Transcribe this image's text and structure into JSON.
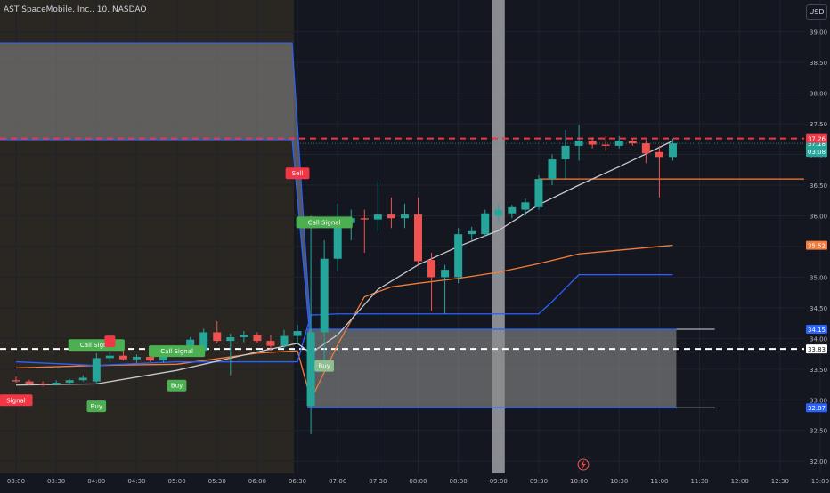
{
  "header": {
    "title": "AST SpaceMobile, Inc., 10, NASDAQ",
    "currency_button": "USD"
  },
  "colors": {
    "background": "#141720",
    "premarket_bg": "#2a2622",
    "up": "#26a69a",
    "down": "#ef5350",
    "orange_line": "#f57c3a",
    "blue_line": "#2962ff",
    "white_line": "#c7c9cf",
    "red_dashed": "#f23645",
    "white_dashed": "#ffffff",
    "band_fill": "#8c8c8c",
    "highlight_bar": "#9ea0a6",
    "buy_label": "#4caf50",
    "sell_label": "#f23645",
    "call_label": "#4caf50",
    "put_label": "#c88d2e"
  },
  "chart_data": {
    "type": "candlestick",
    "title": "AST SpaceMobile, Inc., 10, NASDAQ",
    "x_axis": {
      "labels": [
        "03:00",
        "03:30",
        "04:00",
        "04:30",
        "05:00",
        "05:30",
        "06:00",
        "06:30",
        "07:00",
        "07:30",
        "08:00",
        "08:30",
        "09:00",
        "09:30",
        "10:00",
        "10:30",
        "11:00",
        "11:30",
        "12:00",
        "12:30",
        "13:00",
        "13"
      ],
      "start_time": "03:00",
      "end_time": "13:00",
      "bar_interval_minutes": 10
    },
    "y_axis": {
      "ticks": [
        "32.00",
        "32.50",
        "33.00",
        "33.50",
        "34.00",
        "34.50",
        "35.00",
        "35.50",
        "36.00",
        "36.50",
        "37.00",
        "37.50",
        "38.00",
        "38.50",
        "39.00"
      ],
      "range": [
        31.8,
        39.3
      ],
      "position": "right"
    },
    "candles": [
      {
        "t": "03:00",
        "o": 33.32,
        "h": 33.38,
        "l": 33.28,
        "c": 33.3
      },
      {
        "t": "03:10",
        "o": 33.3,
        "h": 33.33,
        "l": 33.24,
        "c": 33.26
      },
      {
        "t": "03:20",
        "o": 33.26,
        "h": 33.3,
        "l": 33.22,
        "c": 33.25
      },
      {
        "t": "03:30",
        "o": 33.25,
        "h": 33.32,
        "l": 33.23,
        "c": 33.28
      },
      {
        "t": "03:40",
        "o": 33.28,
        "h": 33.34,
        "l": 33.26,
        "c": 33.32
      },
      {
        "t": "03:50",
        "o": 33.32,
        "h": 33.4,
        "l": 33.3,
        "c": 33.36
      },
      {
        "t": "04:00",
        "o": 33.3,
        "h": 33.76,
        "l": 33.26,
        "c": 33.68
      },
      {
        "t": "04:10",
        "o": 33.68,
        "h": 33.78,
        "l": 33.62,
        "c": 33.72
      },
      {
        "t": "04:20",
        "o": 33.72,
        "h": 33.82,
        "l": 33.64,
        "c": 33.66
      },
      {
        "t": "04:30",
        "o": 33.66,
        "h": 33.74,
        "l": 33.6,
        "c": 33.7
      },
      {
        "t": "04:40",
        "o": 33.7,
        "h": 33.76,
        "l": 33.62,
        "c": 33.64
      },
      {
        "t": "04:50",
        "o": 33.64,
        "h": 33.8,
        "l": 33.6,
        "c": 33.76
      },
      {
        "t": "05:00",
        "o": 33.76,
        "h": 33.88,
        "l": 33.7,
        "c": 33.8
      },
      {
        "t": "05:10",
        "o": 33.8,
        "h": 34.02,
        "l": 33.74,
        "c": 33.98
      },
      {
        "t": "05:20",
        "o": 33.8,
        "h": 34.16,
        "l": 33.7,
        "c": 34.1
      },
      {
        "t": "05:30",
        "o": 34.1,
        "h": 34.28,
        "l": 33.92,
        "c": 33.96
      },
      {
        "t": "05:40",
        "o": 33.96,
        "h": 34.08,
        "l": 33.4,
        "c": 34.02
      },
      {
        "t": "05:50",
        "o": 34.02,
        "h": 34.12,
        "l": 33.94,
        "c": 34.06
      },
      {
        "t": "06:00",
        "o": 34.06,
        "h": 34.1,
        "l": 33.92,
        "c": 33.96
      },
      {
        "t": "06:10",
        "o": 33.96,
        "h": 34.06,
        "l": 33.8,
        "c": 33.88
      },
      {
        "t": "06:20",
        "o": 33.88,
        "h": 34.14,
        "l": 33.84,
        "c": 34.04
      },
      {
        "t": "06:30",
        "o": 34.04,
        "h": 34.22,
        "l": 33.9,
        "c": 34.12
      },
      {
        "t": "06:40",
        "o": 32.9,
        "h": 36.0,
        "l": 32.44,
        "c": 34.1
      },
      {
        "t": "06:50",
        "o": 34.1,
        "h": 35.6,
        "l": 33.6,
        "c": 35.3
      },
      {
        "t": "07:00",
        "o": 35.3,
        "h": 36.2,
        "l": 35.1,
        "c": 35.88
      },
      {
        "t": "07:10",
        "o": 35.88,
        "h": 36.1,
        "l": 35.6,
        "c": 35.96
      },
      {
        "t": "07:20",
        "o": 35.96,
        "h": 36.1,
        "l": 35.4,
        "c": 35.94
      },
      {
        "t": "07:30",
        "o": 35.94,
        "h": 36.55,
        "l": 35.75,
        "c": 36.02
      },
      {
        "t": "07:40",
        "o": 36.02,
        "h": 36.3,
        "l": 35.8,
        "c": 35.96
      },
      {
        "t": "07:50",
        "o": 35.96,
        "h": 36.2,
        "l": 35.8,
        "c": 36.02
      },
      {
        "t": "08:00",
        "o": 36.02,
        "h": 36.3,
        "l": 35.2,
        "c": 35.26
      },
      {
        "t": "08:10",
        "o": 35.28,
        "h": 35.4,
        "l": 34.45,
        "c": 35.0
      },
      {
        "t": "08:20",
        "o": 35.0,
        "h": 35.2,
        "l": 34.4,
        "c": 35.12
      },
      {
        "t": "08:30",
        "o": 35.0,
        "h": 35.8,
        "l": 34.9,
        "c": 35.7
      },
      {
        "t": "08:40",
        "o": 35.7,
        "h": 35.82,
        "l": 35.6,
        "c": 35.75
      },
      {
        "t": "08:50",
        "o": 35.7,
        "h": 36.1,
        "l": 35.66,
        "c": 36.04
      },
      {
        "t": "09:00",
        "o": 36.0,
        "h": 36.2,
        "l": 35.9,
        "c": 36.1
      },
      {
        "t": "09:10",
        "o": 36.04,
        "h": 36.18,
        "l": 35.96,
        "c": 36.14
      },
      {
        "t": "09:20",
        "o": 36.1,
        "h": 36.28,
        "l": 36.0,
        "c": 36.22
      },
      {
        "t": "09:30",
        "o": 36.14,
        "h": 36.66,
        "l": 36.1,
        "c": 36.6
      },
      {
        "t": "09:40",
        "o": 36.6,
        "h": 37.0,
        "l": 36.5,
        "c": 36.92
      },
      {
        "t": "09:50",
        "o": 36.92,
        "h": 37.4,
        "l": 36.6,
        "c": 37.14
      },
      {
        "t": "10:00",
        "o": 37.14,
        "h": 37.48,
        "l": 36.9,
        "c": 37.22
      },
      {
        "t": "10:10",
        "o": 37.22,
        "h": 37.28,
        "l": 37.1,
        "c": 37.16
      },
      {
        "t": "10:20",
        "o": 37.16,
        "h": 37.3,
        "l": 37.06,
        "c": 37.14
      },
      {
        "t": "10:30",
        "o": 37.14,
        "h": 37.3,
        "l": 37.1,
        "c": 37.22
      },
      {
        "t": "10:40",
        "o": 37.22,
        "h": 37.26,
        "l": 37.14,
        "c": 37.18
      },
      {
        "t": "10:50",
        "o": 37.18,
        "h": 37.24,
        "l": 36.86,
        "c": 37.02
      },
      {
        "t": "11:00",
        "o": 37.04,
        "h": 37.14,
        "l": 36.3,
        "c": 36.96
      },
      {
        "t": "11:10",
        "o": 36.96,
        "h": 37.26,
        "l": 36.9,
        "c": 37.18
      }
    ],
    "series": [
      {
        "name": "",
        "style": "orange",
        "points": [
          [
            "03:00",
            33.52
          ],
          [
            "04:00",
            33.56
          ],
          [
            "05:00",
            33.58
          ],
          [
            "06:00",
            33.76
          ],
          [
            "06:30",
            33.8
          ],
          [
            "06:40",
            33.0
          ],
          [
            "07:00",
            33.9
          ],
          [
            "07:20",
            34.68
          ],
          [
            "07:40",
            34.84
          ],
          [
            "08:00",
            34.9
          ],
          [
            "08:30",
            34.98
          ],
          [
            "09:00",
            35.08
          ],
          [
            "09:30",
            35.22
          ],
          [
            "10:00",
            35.38
          ],
          [
            "10:30",
            35.44
          ],
          [
            "11:10",
            35.52
          ]
        ]
      },
      {
        "name": "",
        "style": "blue",
        "points": [
          [
            "03:00",
            33.62
          ],
          [
            "04:00",
            33.56
          ],
          [
            "05:00",
            33.62
          ],
          [
            "06:30",
            33.62
          ],
          [
            "06:40",
            34.38
          ],
          [
            "07:00",
            34.4
          ],
          [
            "08:40",
            34.4
          ],
          [
            "09:30",
            34.4
          ],
          [
            "09:40",
            34.6
          ],
          [
            "10:00",
            35.04
          ],
          [
            "10:30",
            35.04
          ],
          [
            "11:10",
            35.04
          ]
        ]
      },
      {
        "name": "",
        "style": "white",
        "points": [
          [
            "03:00",
            33.24
          ],
          [
            "04:00",
            33.26
          ],
          [
            "05:00",
            33.48
          ],
          [
            "06:00",
            33.78
          ],
          [
            "06:30",
            33.92
          ],
          [
            "06:40",
            33.76
          ],
          [
            "07:00",
            34.06
          ],
          [
            "07:30",
            34.8
          ],
          [
            "08:00",
            35.2
          ],
          [
            "08:30",
            35.5
          ],
          [
            "09:00",
            35.76
          ],
          [
            "09:30",
            36.18
          ],
          [
            "10:00",
            36.5
          ],
          [
            "10:30",
            36.8
          ],
          [
            "11:10",
            37.22
          ]
        ]
      }
    ],
    "levels": [
      {
        "price": 37.26,
        "label": "37.26",
        "style": "red-dashed"
      },
      {
        "price": 33.83,
        "label": "33.83",
        "style": "white-dashed"
      },
      {
        "price": 36.6,
        "label": "",
        "style": "orange-solid"
      }
    ],
    "price_badges": [
      {
        "price": 37.18,
        "label": "37.18",
        "sub": "03:08",
        "color": "up"
      },
      {
        "price": 35.52,
        "label": "35.52",
        "color": "orange"
      },
      {
        "price": 34.15,
        "label": "34.15",
        "color": "blue"
      },
      {
        "price": 33.83,
        "label": "33.83",
        "color": "white"
      },
      {
        "price": 32.87,
        "label": "32.87",
        "color": "blue"
      }
    ],
    "zones": [
      {
        "kind": "upper",
        "top": 38.82,
        "bottom": 37.24,
        "t_start": "03:00",
        "t_end": "06:30",
        "edge": "6:40",
        "edge_price": 33.2
      },
      {
        "kind": "lower",
        "top": 34.15,
        "bottom": 32.87,
        "t_start": "06:40",
        "t_end": "11:10",
        "ext_end": "11:40"
      }
    ],
    "highlight_time": "09:00",
    "signals": [
      {
        "t": "03:00",
        "text": "Signal",
        "kind": "sell",
        "price": 33.0
      },
      {
        "t": "04:00",
        "text": "Call Signal",
        "kind": "call",
        "price": 33.9
      },
      {
        "t": "04:00",
        "text": "Buy",
        "kind": "buy",
        "price": 32.9
      },
      {
        "t": "04:10",
        "text": "",
        "kind": "sell-small",
        "price": 33.96
      },
      {
        "t": "05:00",
        "text": "Call Signal",
        "kind": "call",
        "price": 33.8
      },
      {
        "t": "05:00",
        "text": "Buy",
        "kind": "buy",
        "price": 33.24
      },
      {
        "t": "06:30",
        "text": "Sell",
        "kind": "sell",
        "price": 36.7
      },
      {
        "t": "06:40",
        "text": "Pu",
        "kind": "put",
        "price": 35.9
      },
      {
        "t": "06:50",
        "text": "Call Signal",
        "kind": "call",
        "price": 35.9
      },
      {
        "t": "06:50",
        "text": "Buy",
        "kind": "buy-faded",
        "price": 33.56
      }
    ]
  }
}
